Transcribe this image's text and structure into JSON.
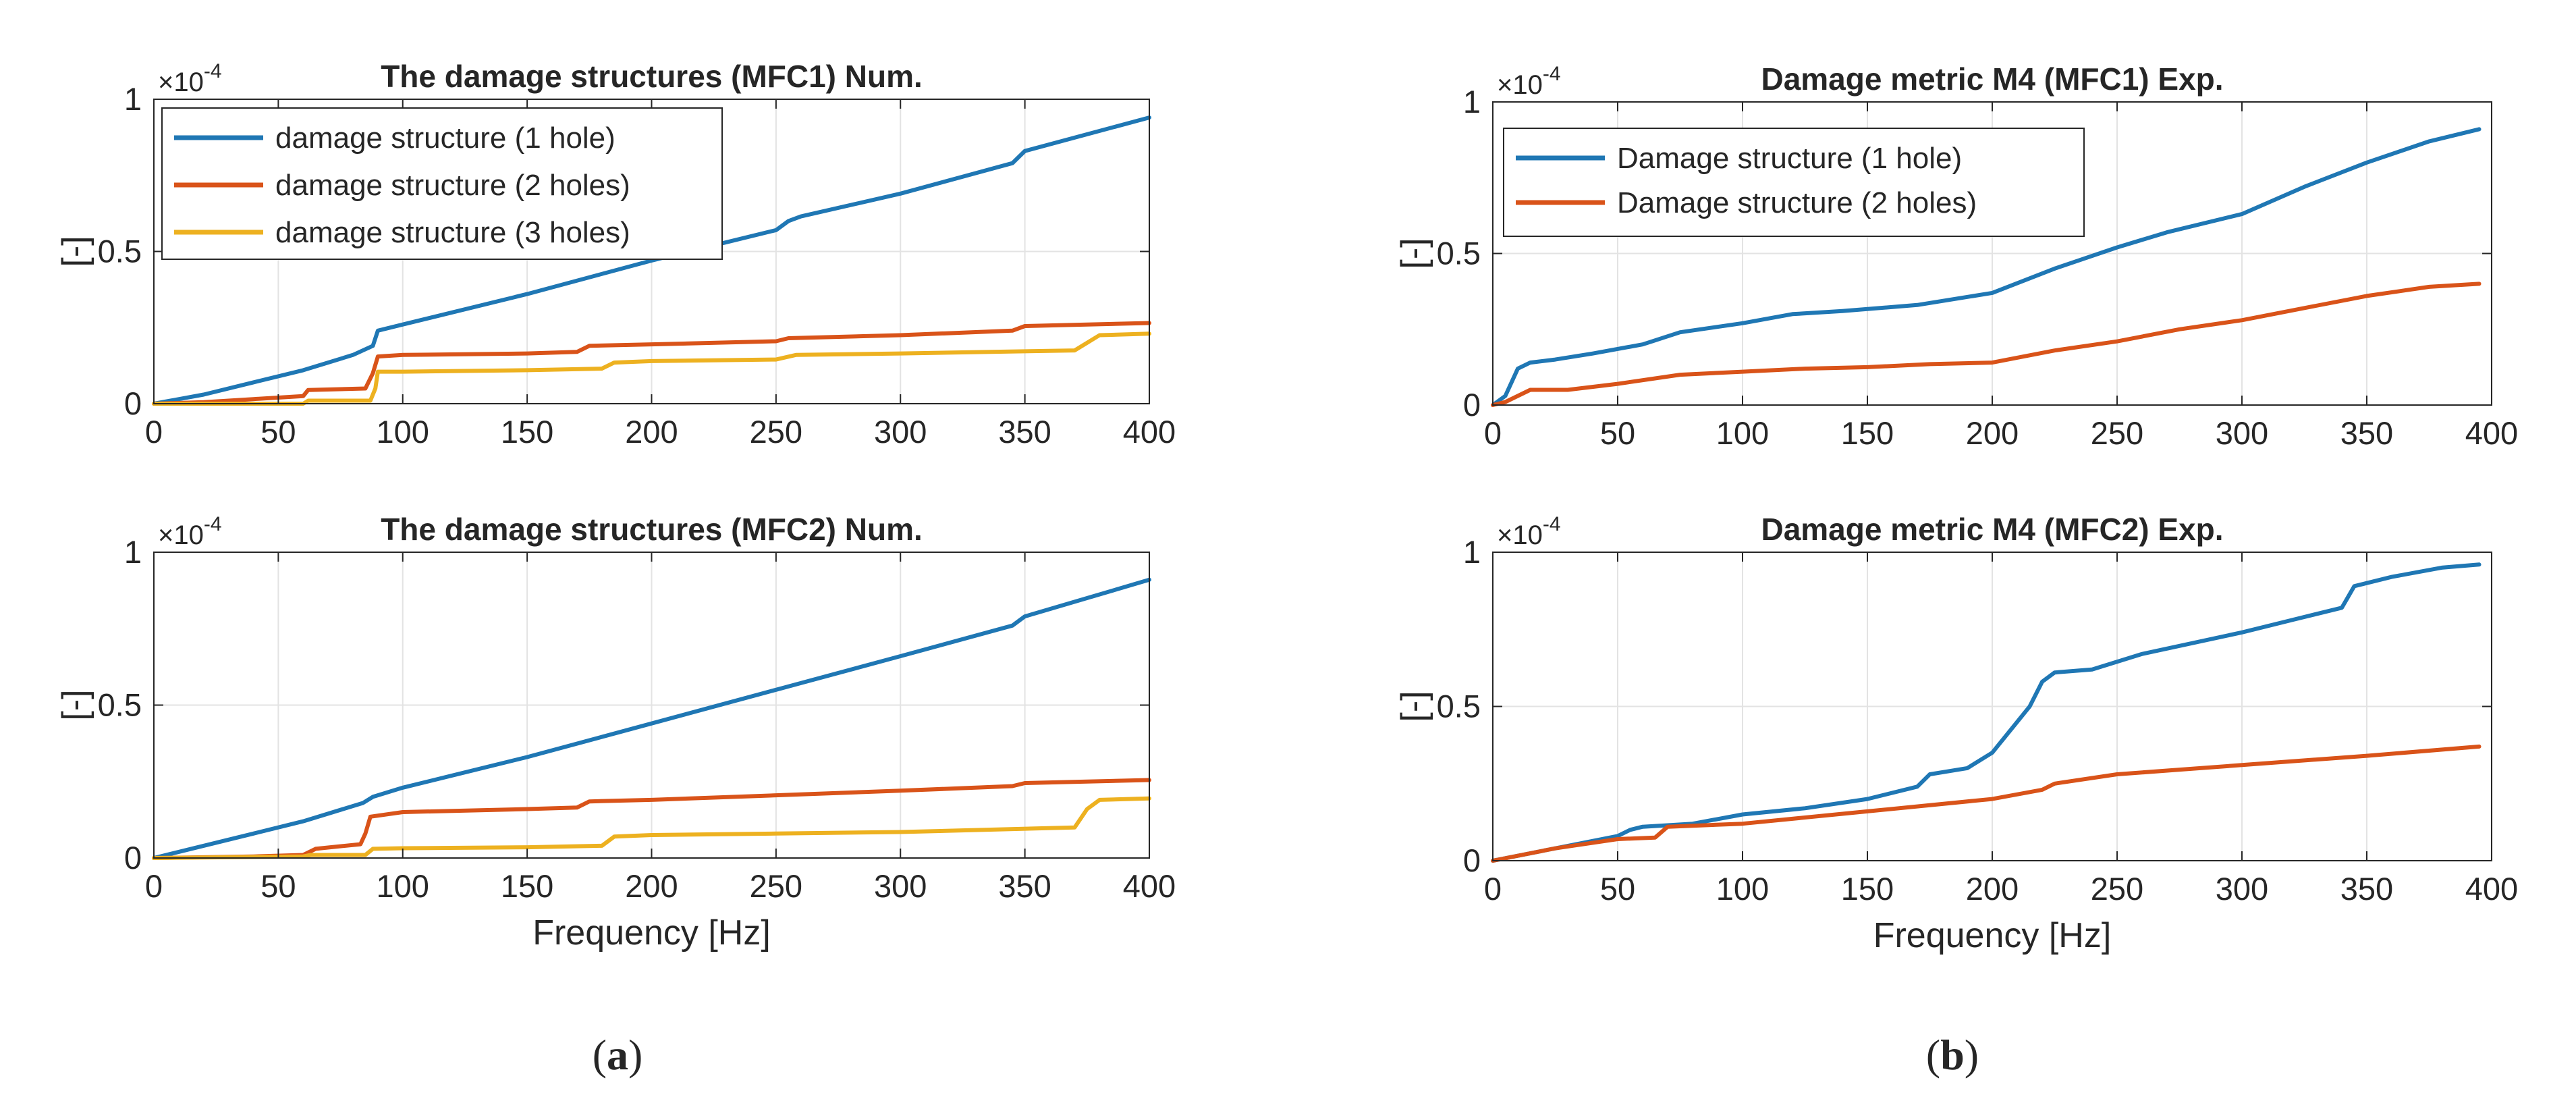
{
  "captions": [
    {
      "open": "(",
      "letter": "a",
      "close": ")"
    },
    {
      "open": "(",
      "letter": "b",
      "close": ")"
    }
  ],
  "colors": {
    "blue": "#1f77b4",
    "orange": "#d95319",
    "yellow": "#edb120",
    "axis": "#262626",
    "grid": "#e3e3e3"
  },
  "chart_data": [
    {
      "type": "line",
      "title": "The damage structures (MFC1) Num.",
      "xlabel": "",
      "ylabel": "[-]",
      "xlim": [
        0,
        400
      ],
      "ylim": [
        0,
        1
      ],
      "y_exponent_label": "×10",
      "y_exponent_power": "-4",
      "grid": true,
      "legend_position": "top-left",
      "xticks": [
        0,
        50,
        100,
        150,
        200,
        250,
        300,
        350,
        400
      ],
      "xtick_labels": [
        "0",
        "50",
        "100",
        "150",
        "200",
        "250",
        "300",
        "350",
        "400"
      ],
      "yticks": [
        0,
        0.5,
        1
      ],
      "ytick_labels": [
        "0",
        "0.5",
        "1"
      ],
      "series": [
        {
          "name": "damage structure (1 hole)",
          "color": "#1f77b4",
          "x": [
            0,
            20,
            40,
            60,
            80,
            88,
            90,
            100,
            150,
            200,
            250,
            255,
            260,
            300,
            345,
            350,
            400
          ],
          "y": [
            0,
            0.03,
            0.07,
            0.11,
            0.16,
            0.19,
            0.24,
            0.26,
            0.36,
            0.47,
            0.57,
            0.6,
            0.615,
            0.69,
            0.79,
            0.83,
            0.94
          ]
        },
        {
          "name": "damage structure (2 holes)",
          "color": "#d95319",
          "x": [
            0,
            20,
            40,
            60,
            62,
            85,
            88,
            90,
            100,
            150,
            170,
            175,
            200,
            250,
            255,
            300,
            345,
            350,
            400
          ],
          "y": [
            0,
            0.005,
            0.015,
            0.025,
            0.045,
            0.05,
            0.1,
            0.155,
            0.16,
            0.165,
            0.17,
            0.19,
            0.195,
            0.205,
            0.215,
            0.225,
            0.24,
            0.255,
            0.265
          ]
        },
        {
          "name": "damage structure (3 holes)",
          "color": "#edb120",
          "x": [
            0,
            60,
            62,
            87,
            89,
            90,
            100,
            150,
            180,
            185,
            200,
            250,
            258,
            300,
            370,
            375,
            380,
            400
          ],
          "y": [
            0,
            0,
            0.01,
            0.01,
            0.05,
            0.105,
            0.105,
            0.11,
            0.115,
            0.135,
            0.14,
            0.145,
            0.16,
            0.165,
            0.175,
            0.2,
            0.225,
            0.23
          ]
        }
      ]
    },
    {
      "type": "line",
      "title": "Damage metric M4 (MFC1) Exp.",
      "xlabel": "",
      "ylabel": "[-]",
      "xlim": [
        0,
        400
      ],
      "ylim": [
        0,
        1
      ],
      "y_exponent_label": "×10",
      "y_exponent_power": "-4",
      "grid": true,
      "legend_position": "top-left",
      "xticks": [
        0,
        50,
        100,
        150,
        200,
        250,
        300,
        350,
        400
      ],
      "xtick_labels": [
        "0",
        "50",
        "100",
        "150",
        "200",
        "250",
        "300",
        "350",
        "400"
      ],
      "yticks": [
        0,
        0.5,
        1
      ],
      "ytick_labels": [
        "0",
        "0.5",
        "1"
      ],
      "series": [
        {
          "name": "Damage structure (1 hole)",
          "color": "#1f77b4",
          "x": [
            0,
            5,
            10,
            15,
            25,
            40,
            60,
            75,
            100,
            120,
            140,
            170,
            200,
            225,
            250,
            270,
            300,
            325,
            350,
            375,
            395
          ],
          "y": [
            0,
            0.03,
            0.12,
            0.14,
            0.15,
            0.17,
            0.2,
            0.24,
            0.27,
            0.3,
            0.31,
            0.33,
            0.37,
            0.45,
            0.52,
            0.57,
            0.63,
            0.72,
            0.8,
            0.87,
            0.91
          ]
        },
        {
          "name": "Damage structure (2 holes)",
          "color": "#d95319",
          "x": [
            0,
            5,
            10,
            15,
            30,
            50,
            75,
            100,
            125,
            150,
            175,
            200,
            225,
            250,
            275,
            300,
            325,
            350,
            375,
            395
          ],
          "y": [
            0,
            0.01,
            0.03,
            0.05,
            0.05,
            0.07,
            0.1,
            0.11,
            0.12,
            0.125,
            0.135,
            0.14,
            0.18,
            0.21,
            0.25,
            0.28,
            0.32,
            0.36,
            0.39,
            0.4
          ]
        }
      ]
    },
    {
      "type": "line",
      "title": "The damage structures (MFC2) Num.",
      "xlabel": "Frequency [Hz]",
      "ylabel": "[-]",
      "xlim": [
        0,
        400
      ],
      "ylim": [
        0,
        1
      ],
      "y_exponent_label": "×10",
      "y_exponent_power": "-4",
      "grid": true,
      "legend_position": "none",
      "xticks": [
        0,
        50,
        100,
        150,
        200,
        250,
        300,
        350,
        400
      ],
      "xtick_labels": [
        "0",
        "50",
        "100",
        "150",
        "200",
        "250",
        "300",
        "350",
        "400"
      ],
      "yticks": [
        0,
        0.5,
        1
      ],
      "ytick_labels": [
        "0",
        "0.5",
        "1"
      ],
      "series": [
        {
          "name": "damage structure (1 hole)",
          "color": "#1f77b4",
          "x": [
            0,
            40,
            60,
            84,
            88,
            100,
            150,
            200,
            250,
            300,
            345,
            350,
            400
          ],
          "y": [
            0,
            0.08,
            0.12,
            0.18,
            0.2,
            0.23,
            0.33,
            0.44,
            0.55,
            0.66,
            0.76,
            0.79,
            0.91
          ]
        },
        {
          "name": "damage structure (2 holes)",
          "color": "#d95319",
          "x": [
            0,
            40,
            60,
            65,
            83,
            85,
            87,
            100,
            150,
            170,
            175,
            200,
            250,
            300,
            345,
            350,
            400
          ],
          "y": [
            0,
            0.005,
            0.01,
            0.03,
            0.045,
            0.08,
            0.135,
            0.15,
            0.16,
            0.165,
            0.185,
            0.19,
            0.205,
            0.22,
            0.235,
            0.245,
            0.255
          ]
        },
        {
          "name": "damage structure (3 holes)",
          "color": "#edb120",
          "x": [
            0,
            60,
            63,
            85,
            88,
            100,
            150,
            180,
            185,
            200,
            250,
            300,
            370,
            375,
            380,
            400
          ],
          "y": [
            0,
            0.005,
            0.01,
            0.01,
            0.03,
            0.032,
            0.035,
            0.04,
            0.07,
            0.075,
            0.08,
            0.085,
            0.1,
            0.16,
            0.19,
            0.195
          ]
        }
      ]
    },
    {
      "type": "line",
      "title": "Damage metric M4 (MFC2) Exp.",
      "xlabel": "Frequency [Hz]",
      "ylabel": "[-]",
      "xlim": [
        0,
        400
      ],
      "ylim": [
        0,
        1
      ],
      "y_exponent_label": "×10",
      "y_exponent_power": "-4",
      "grid": true,
      "legend_position": "none",
      "xticks": [
        0,
        50,
        100,
        150,
        200,
        250,
        300,
        350,
        400
      ],
      "xtick_labels": [
        "0",
        "50",
        "100",
        "150",
        "200",
        "250",
        "300",
        "350",
        "400"
      ],
      "yticks": [
        0,
        0.5,
        1
      ],
      "ytick_labels": [
        "0",
        "0.5",
        "1"
      ],
      "series": [
        {
          "name": "Damage structure (1 hole)",
          "color": "#1f77b4",
          "x": [
            0,
            25,
            50,
            55,
            60,
            80,
            100,
            125,
            150,
            170,
            175,
            190,
            200,
            215,
            220,
            225,
            240,
            260,
            300,
            320,
            340,
            345,
            360,
            380,
            395
          ],
          "y": [
            0,
            0.04,
            0.08,
            0.1,
            0.11,
            0.12,
            0.15,
            0.17,
            0.2,
            0.24,
            0.28,
            0.3,
            0.35,
            0.5,
            0.58,
            0.61,
            0.62,
            0.67,
            0.74,
            0.78,
            0.82,
            0.89,
            0.92,
            0.95,
            0.96
          ]
        },
        {
          "name": "Damage structure (2 holes)",
          "color": "#d95319",
          "x": [
            0,
            25,
            50,
            65,
            70,
            100,
            150,
            200,
            220,
            225,
            250,
            300,
            350,
            395
          ],
          "y": [
            0,
            0.04,
            0.07,
            0.075,
            0.11,
            0.12,
            0.16,
            0.2,
            0.23,
            0.25,
            0.28,
            0.31,
            0.34,
            0.37
          ]
        }
      ]
    }
  ]
}
